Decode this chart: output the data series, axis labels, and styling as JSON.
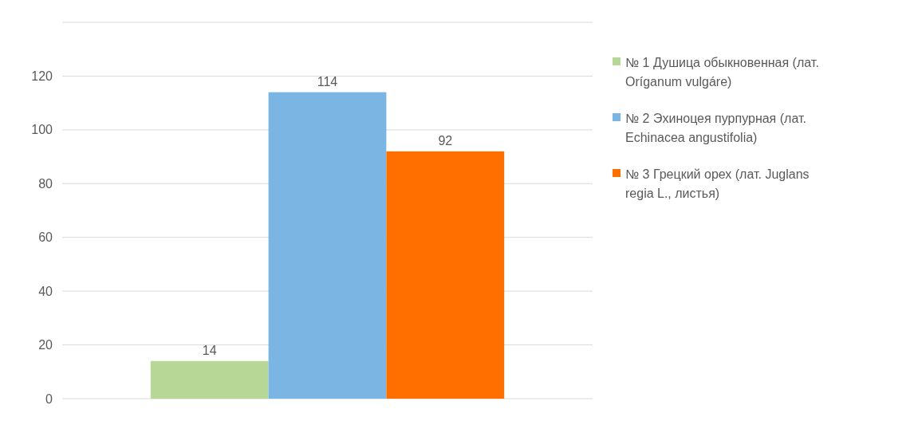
{
  "chart_data": {
    "type": "bar",
    "categories": [
      null
    ],
    "series": [
      {
        "name": "№ 1 Душица обыкновенная (лат. Oríganum vulgáre)",
        "color": "#b7d797",
        "values": [
          14
        ]
      },
      {
        "name": "№ 2 Эхиноцея пурпурная (лат. Echinacea angustifolia)",
        "color": "#7ab5e3",
        "values": [
          114
        ]
      },
      {
        "name": "№ 3 Грецкий орех (лат. Juglans regia L., листья)",
        "color": "#ff6f00",
        "values": [
          92
        ]
      }
    ],
    "ylim": [
      0,
      140
    ],
    "yticks": [
      0,
      20,
      40,
      60,
      80,
      100,
      120,
      {
        "value": 140,
        "label": null
      }
    ],
    "grid": "y",
    "legend": "right",
    "data_labels": true
  }
}
